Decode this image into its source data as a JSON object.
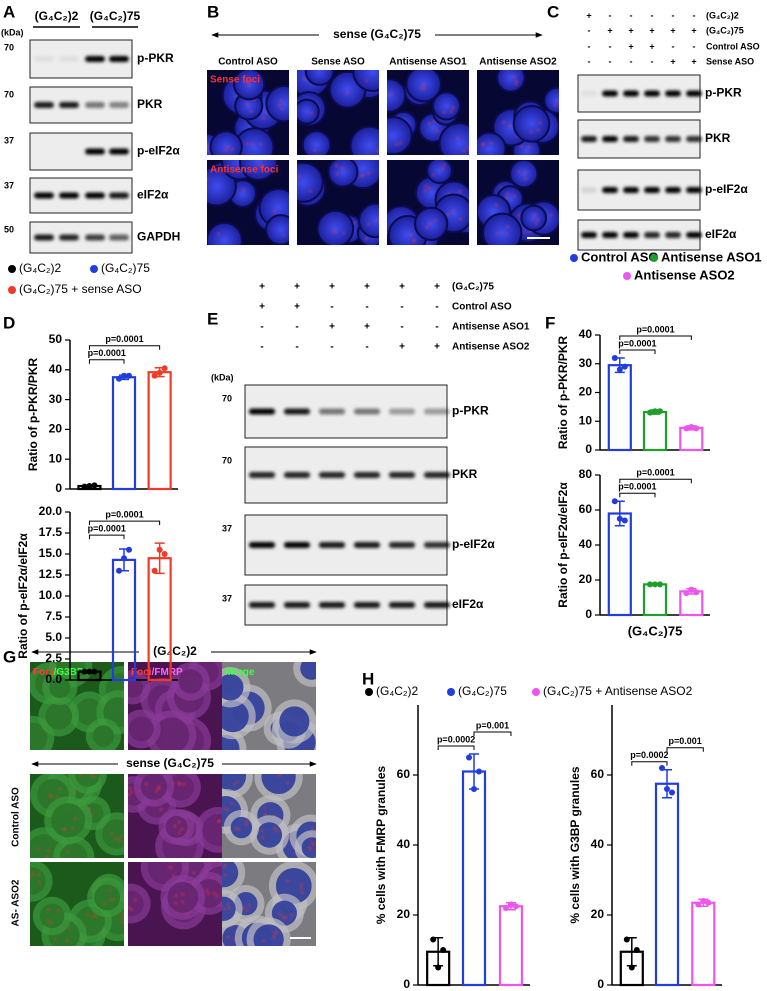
{
  "panel_labels": [
    "A",
    "B",
    "C",
    "D",
    "E",
    "F",
    "G",
    "H"
  ],
  "blots": {
    "A": {
      "unit": "(kDa)",
      "header": [
        "(G₄C₂)2",
        "(G₄C₂)75"
      ],
      "rows": [
        {
          "marker": 70,
          "label": "p-PKR"
        },
        {
          "marker": 70,
          "label": "PKR"
        },
        {
          "marker": 37,
          "label": "p-eIF2α"
        },
        {
          "marker": 37,
          "label": "eIF2α"
        },
        {
          "marker": 50,
          "label": "GAPDH"
        }
      ]
    },
    "C": {
      "conditions": [
        {
          "name": "(G₄C₂)2",
          "signs": [
            "+",
            "-",
            "-",
            "-",
            "-",
            "-"
          ]
        },
        {
          "name": "(G₄C₂)75",
          "signs": [
            "-",
            "+",
            "+",
            "+",
            "+",
            "+"
          ]
        },
        {
          "name": "Control ASO",
          "signs": [
            "-",
            "-",
            "+",
            "+",
            "-",
            "-"
          ]
        },
        {
          "name": "Sense ASO",
          "signs": [
            "-",
            "-",
            "-",
            "-",
            "+",
            "+"
          ]
        }
      ],
      "rows": [
        {
          "label": "p-PKR"
        },
        {
          "label": "PKR"
        },
        {
          "label": "p-eIF2α"
        },
        {
          "label": "eIF2α"
        }
      ]
    },
    "E": {
      "unit": "(kDa)",
      "conditions": [
        {
          "name": "(G₄C₂)75",
          "signs": [
            "+",
            "+",
            "+",
            "+",
            "+",
            "+"
          ]
        },
        {
          "name": "Control ASO",
          "signs": [
            "+",
            "+",
            "-",
            "-",
            "-",
            "-"
          ]
        },
        {
          "name": "Antisense ASO1",
          "signs": [
            "-",
            "-",
            "+",
            "+",
            "-",
            "-"
          ]
        },
        {
          "name": "Antisense ASO2",
          "signs": [
            "-",
            "-",
            "-",
            "-",
            "+",
            "+"
          ]
        }
      ],
      "rows": [
        {
          "marker": 70,
          "label": "p-PKR"
        },
        {
          "marker": 70,
          "label": "PKR"
        },
        {
          "marker": 37,
          "label": "p-eIF2α"
        },
        {
          "marker": 37,
          "label": "eIF2α"
        }
      ]
    }
  },
  "microscopy": {
    "B": {
      "title": "sense (G₄C₂)75",
      "columns": [
        "Control ASO",
        "Sense ASO",
        "Antisense ASO1",
        "Antisense ASO2"
      ],
      "rows": [
        "Sense foci",
        "Antisense foci"
      ]
    },
    "G": {
      "top_title": "(G₄C₂)2",
      "bottom_title": "sense (G₄C₂)75",
      "channels": [
        [
          "Foci",
          "/G3BP"
        ],
        [
          "Foci",
          "/FMRP"
        ],
        [
          "Merge"
        ]
      ],
      "rows": [
        "Control ASO",
        "AS- ASO2"
      ]
    }
  },
  "legends": {
    "D": [
      {
        "name": "(G₄C₂)2",
        "color": "#000000"
      },
      {
        "name": "(G₄C₂)75",
        "color": "#1f3de0"
      },
      {
        "name": "(G₄C₂)75 + sense ASO",
        "color": "#f03a26"
      }
    ],
    "F": [
      {
        "name": "Control ASO",
        "color": "#1f3de0"
      },
      {
        "name": "Antisense ASO1",
        "color": "#1e9e2a"
      },
      {
        "name": "Antisense ASO2",
        "color": "#ee55ee"
      }
    ],
    "H": [
      {
        "name": "(G₄C₂)2",
        "color": "#000000"
      },
      {
        "name": "(G₄C₂)75",
        "color": "#1f3de0"
      },
      {
        "name": "(G₄C₂)75 + Antisense ASO2",
        "color": "#ee55ee"
      }
    ]
  },
  "chart_data": [
    {
      "type": "bar",
      "ylabel": "Ratio of p-PKR/PKR",
      "colors": [
        "#000000",
        "#1f3de0",
        "#f03a26"
      ],
      "values": [
        1,
        37.5,
        39.2
      ],
      "errors": [
        0.3,
        0.7,
        1.5
      ],
      "points": [
        [
          0.8,
          1,
          1.2
        ],
        [
          37,
          38,
          38
        ],
        [
          38,
          39,
          40.5
        ]
      ],
      "ylim": [
        0,
        50
      ],
      "yticks": [
        0,
        10,
        20,
        30,
        40,
        50
      ],
      "annotations": [
        "p=0.0001",
        "p=0.0001"
      ]
    },
    {
      "type": "bar",
      "ylabel": "Ratio of p-eIF2α/eIF2α",
      "colors": [
        "#000000",
        "#1f3de0",
        "#f03a26"
      ],
      "values": [
        1,
        14.3,
        14.5
      ],
      "errors": [
        0.1,
        1.3,
        1.8
      ],
      "points": [
        [
          1,
          1,
          1
        ],
        [
          13,
          14.5,
          15.5
        ],
        [
          13,
          15.5,
          15
        ]
      ],
      "ylim": [
        0,
        20
      ],
      "yticks": [
        {
          "value": 0,
          "label": "0.0"
        },
        2.5,
        {
          "value": 5,
          "label": "5.0"
        },
        7.5,
        {
          "value": 10,
          "label": "10.0"
        },
        12.5,
        {
          "value": 15,
          "label": "15.0"
        },
        17.5,
        {
          "value": 20,
          "label": "20.0"
        }
      ],
      "annotations": [
        "p=0.0001",
        "p=0.0001"
      ]
    },
    {
      "type": "bar",
      "ylabel": "Ratio of p-PKR/PKR",
      "colors": [
        "#1f3de0",
        "#1e9e2a",
        "#ee55ee"
      ],
      "values": [
        29.5,
        13.2,
        7.7
      ],
      "errors": [
        2.5,
        0.7,
        0.7
      ],
      "points": [
        [
          32,
          28,
          29
        ],
        [
          13,
          13.5,
          13.5
        ],
        [
          7.5,
          8,
          7.5
        ]
      ],
      "ylim": [
        0,
        40
      ],
      "yticks": [
        0,
        10,
        20,
        30,
        40
      ],
      "annotations": [
        "p=0.0001",
        "p=0.0001"
      ]
    },
    {
      "type": "bar",
      "ylabel": "Ratio of p-eIF2α/eIF2α",
      "xlabel": "(G₄C₂)75",
      "colors": [
        "#1f3de0",
        "#1e9e2a",
        "#ee55ee"
      ],
      "values": [
        58,
        17.5,
        13.5
      ],
      "errors": [
        7,
        0.5,
        1.5
      ],
      "points": [
        [
          65,
          55,
          54
        ],
        [
          17.5,
          17.5,
          17.5
        ],
        [
          12.5,
          14.5,
          13
        ]
      ],
      "ylim": [
        0,
        80
      ],
      "yticks": [
        0,
        20,
        40,
        60,
        80
      ],
      "annotations": [
        "p=0.0001",
        "p=0.0001"
      ]
    },
    {
      "type": "bar",
      "ylabel": "% cells with FMRP granules",
      "colors": [
        "#000000",
        "#1f3de0",
        "#ee55ee"
      ],
      "values": [
        9.5,
        61,
        22.5
      ],
      "errors": [
        4,
        5,
        1
      ],
      "points": [
        [
          13,
          5,
          10
        ],
        [
          65,
          56,
          61
        ],
        [
          22,
          23,
          22.5
        ]
      ],
      "ylim": [
        0,
        80
      ],
      "yticks": [
        0,
        20,
        40,
        60
      ],
      "annotations": [
        "p=0.0002",
        "p=0.001"
      ]
    },
    {
      "type": "bar",
      "ylabel": "% cells with G3BP granules",
      "colors": [
        "#000000",
        "#1f3de0",
        "#ee55ee"
      ],
      "values": [
        9.5,
        57.5,
        23.5
      ],
      "errors": [
        4,
        4,
        1
      ],
      "points": [
        [
          13,
          5,
          10
        ],
        [
          62,
          56,
          55
        ],
        [
          23,
          24,
          23.5
        ]
      ],
      "ylim": [
        0,
        80
      ],
      "yticks": [
        0,
        20,
        40,
        60
      ],
      "annotations": [
        "p=0.0002",
        "p=0.001"
      ]
    }
  ]
}
